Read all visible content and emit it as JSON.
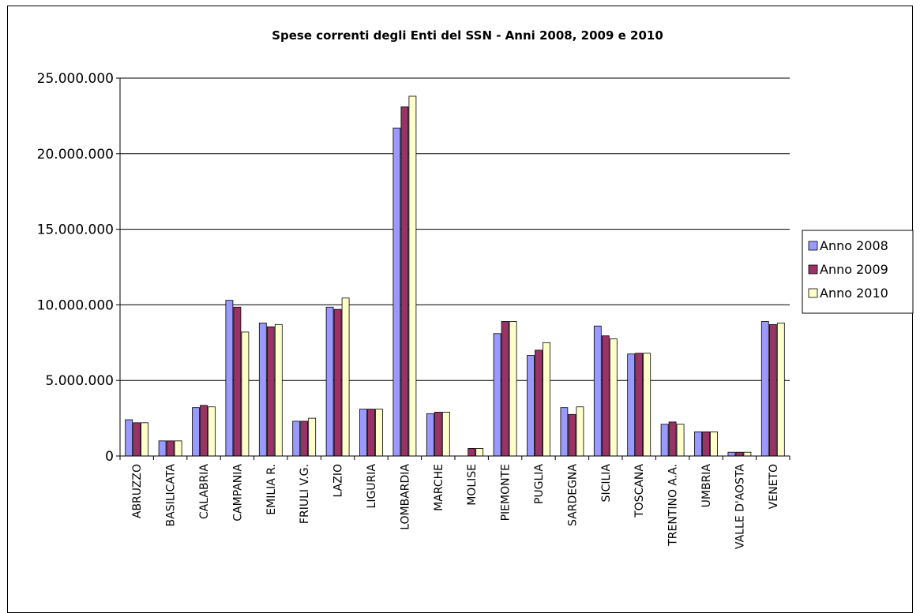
{
  "chart_data": {
    "type": "bar",
    "title": "Spese correnti degli Enti del SSN - Anni 2008, 2009 e 2010",
    "xlabel": "",
    "ylabel": "",
    "ylim": [
      0,
      25000000
    ],
    "yticks": [
      0,
      5000000,
      10000000,
      15000000,
      20000000,
      25000000
    ],
    "ytick_labels": [
      "0",
      "5.000.000",
      "10.000.000",
      "15.000.000",
      "20.000.000",
      "25.000.000"
    ],
    "grid": true,
    "legend_position": "right",
    "categories": [
      "ABRUZZO",
      "BASILICATA",
      "CALABRIA",
      "CAMPANIA",
      "EMILIA R.",
      "FRIULI V.G.",
      "LAZIO",
      "LIGURIA",
      "LOMBARDIA",
      "MARCHE",
      "MOLISE",
      "PIEMONTE",
      "PUGLIA",
      "SARDEGNA",
      "SICILIA",
      "TOSCANA",
      "TRENTINO A.A.",
      "UMBRIA",
      "VALLE D'AOSTA",
      "VENETO"
    ],
    "series": [
      {
        "name": "Anno 2008",
        "color": "#9999FF",
        "values": [
          2400000,
          1000000,
          3200000,
          10300000,
          8800000,
          2300000,
          9850000,
          3100000,
          21700000,
          2800000,
          0,
          8100000,
          6650000,
          3200000,
          8600000,
          6750000,
          2100000,
          1600000,
          250000,
          8900000
        ]
      },
      {
        "name": "Anno 2009",
        "color": "#993366",
        "values": [
          2200000,
          1000000,
          3350000,
          9850000,
          8550000,
          2300000,
          9700000,
          3100000,
          23100000,
          2900000,
          500000,
          8900000,
          7000000,
          2750000,
          7950000,
          6800000,
          2250000,
          1600000,
          250000,
          8700000
        ]
      },
      {
        "name": "Anno 2010",
        "color": "#FFFFCC",
        "values": [
          2200000,
          1000000,
          3250000,
          8200000,
          8700000,
          2500000,
          10450000,
          3100000,
          23800000,
          2900000,
          500000,
          8900000,
          7500000,
          3250000,
          7750000,
          6800000,
          2100000,
          1600000,
          250000,
          8800000
        ]
      }
    ]
  }
}
